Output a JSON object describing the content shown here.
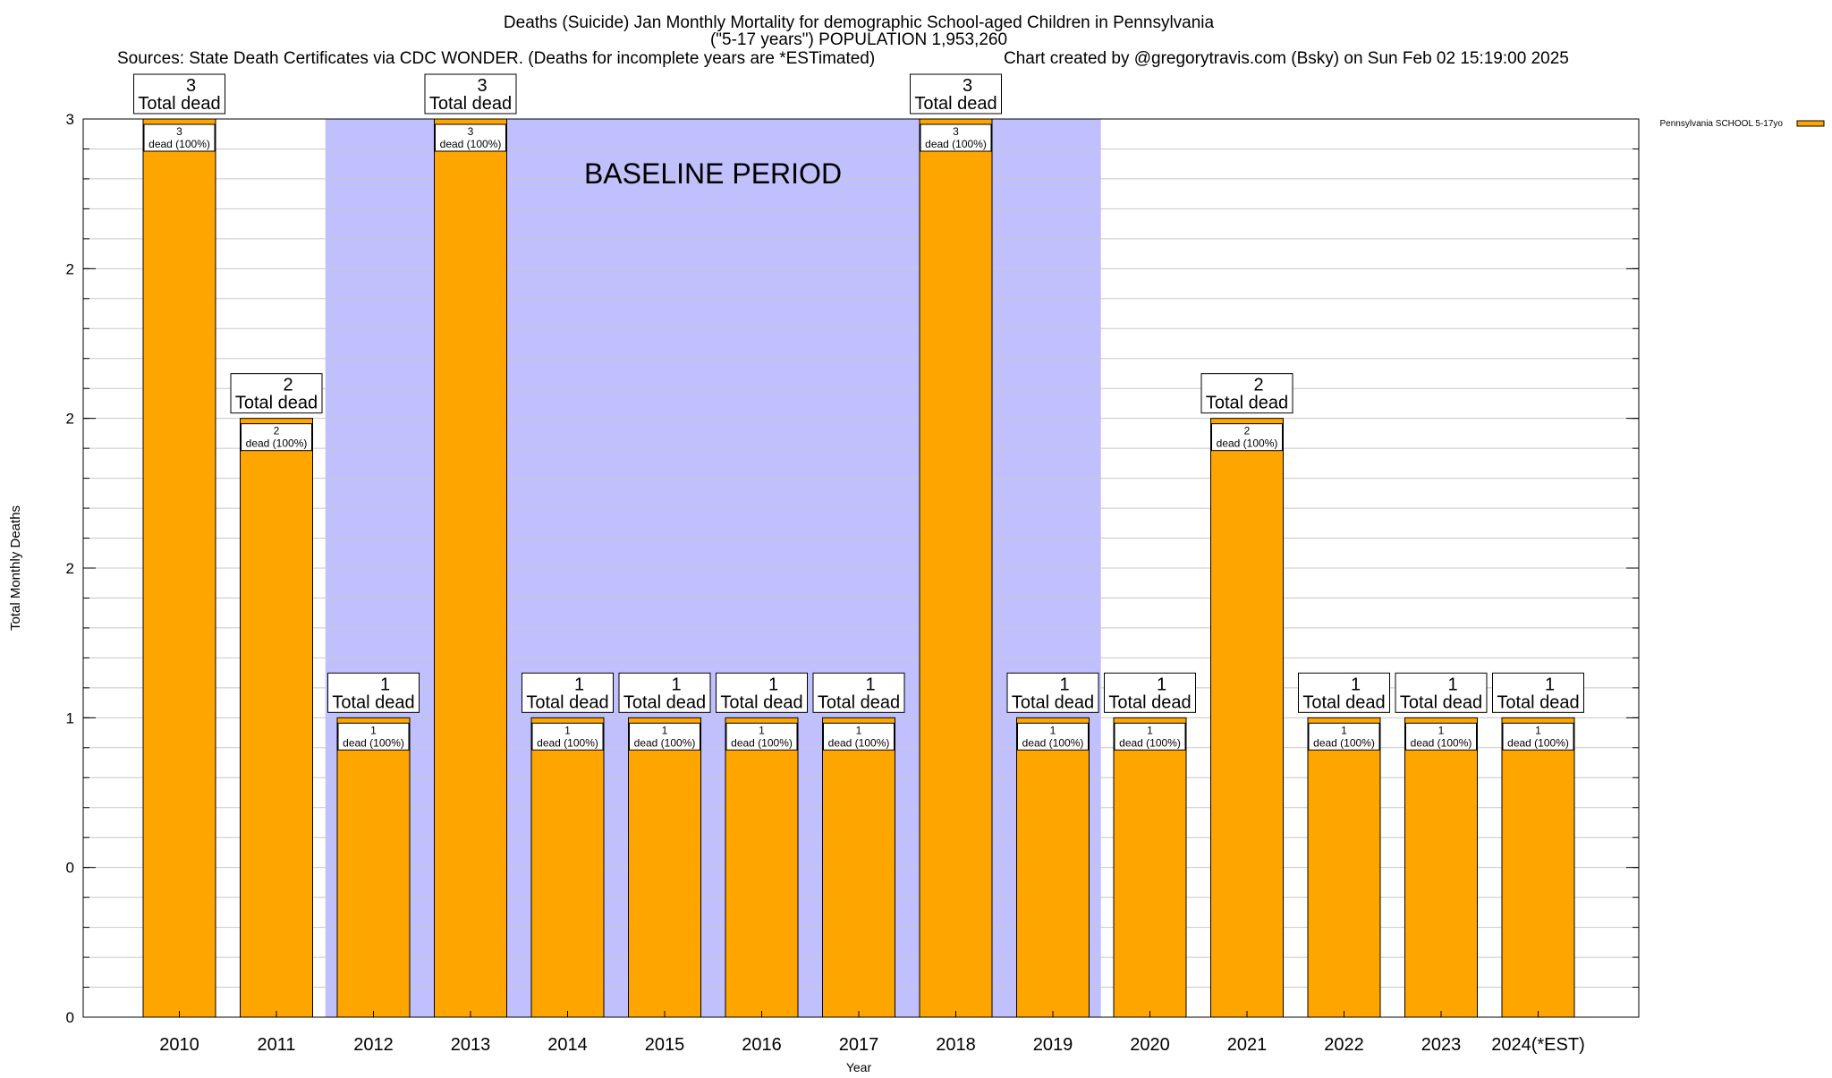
{
  "chart_data": {
    "type": "bar",
    "title": "Deaths (Suicide) Jan Monthly Mortality for demographic School-aged Children in Pennsylvania",
    "subtitle": "(\"5-17 years\") POPULATION 1,953,260",
    "sources": "Sources: State Death Certificates via CDC WONDER. (Deaths for incomplete years are *ESTimated)",
    "credit": "Chart created by @gregorytravis.com (Bsky) on Sun Feb 02 15:19:00 2025",
    "xlabel": "Year",
    "ylabel": "Total Monthly Deaths",
    "ylim": [
      0,
      3
    ],
    "yticks": [
      {
        "value": 0,
        "label": "0"
      },
      {
        "value": 0.5,
        "label": "0"
      },
      {
        "value": 1,
        "label": "1"
      },
      {
        "value": 1.5,
        "label": "2"
      },
      {
        "value": 2,
        "label": "2"
      },
      {
        "value": 2.5,
        "label": "2"
      },
      {
        "value": 3,
        "label": "3"
      }
    ],
    "grid": true,
    "legend": {
      "position": "top-right",
      "entries": [
        "Pennsylvania SCHOOL 5-17yo"
      ]
    },
    "baseline_label": "BASELINE PERIOD",
    "baseline_categories": [
      "2012",
      "2019"
    ],
    "categories": [
      "2010",
      "2011",
      "2012",
      "2013",
      "2014",
      "2015",
      "2016",
      "2017",
      "2018",
      "2019",
      "2020",
      "2021",
      "2022",
      "2023",
      "2024(*EST)"
    ],
    "series": [
      {
        "name": "Pennsylvania SCHOOL 5-17yo",
        "values": [
          3,
          2,
          1,
          3,
          1,
          1,
          1,
          1,
          3,
          1,
          1,
          2,
          1,
          1,
          1
        ]
      }
    ],
    "total_label_suffix": "Total dead",
    "inner_label_suffix": "dead (100%)",
    "colors": {
      "bar": "#FFA500",
      "baseline": "#C0C0FF",
      "grid": "#C8C8C8"
    }
  }
}
